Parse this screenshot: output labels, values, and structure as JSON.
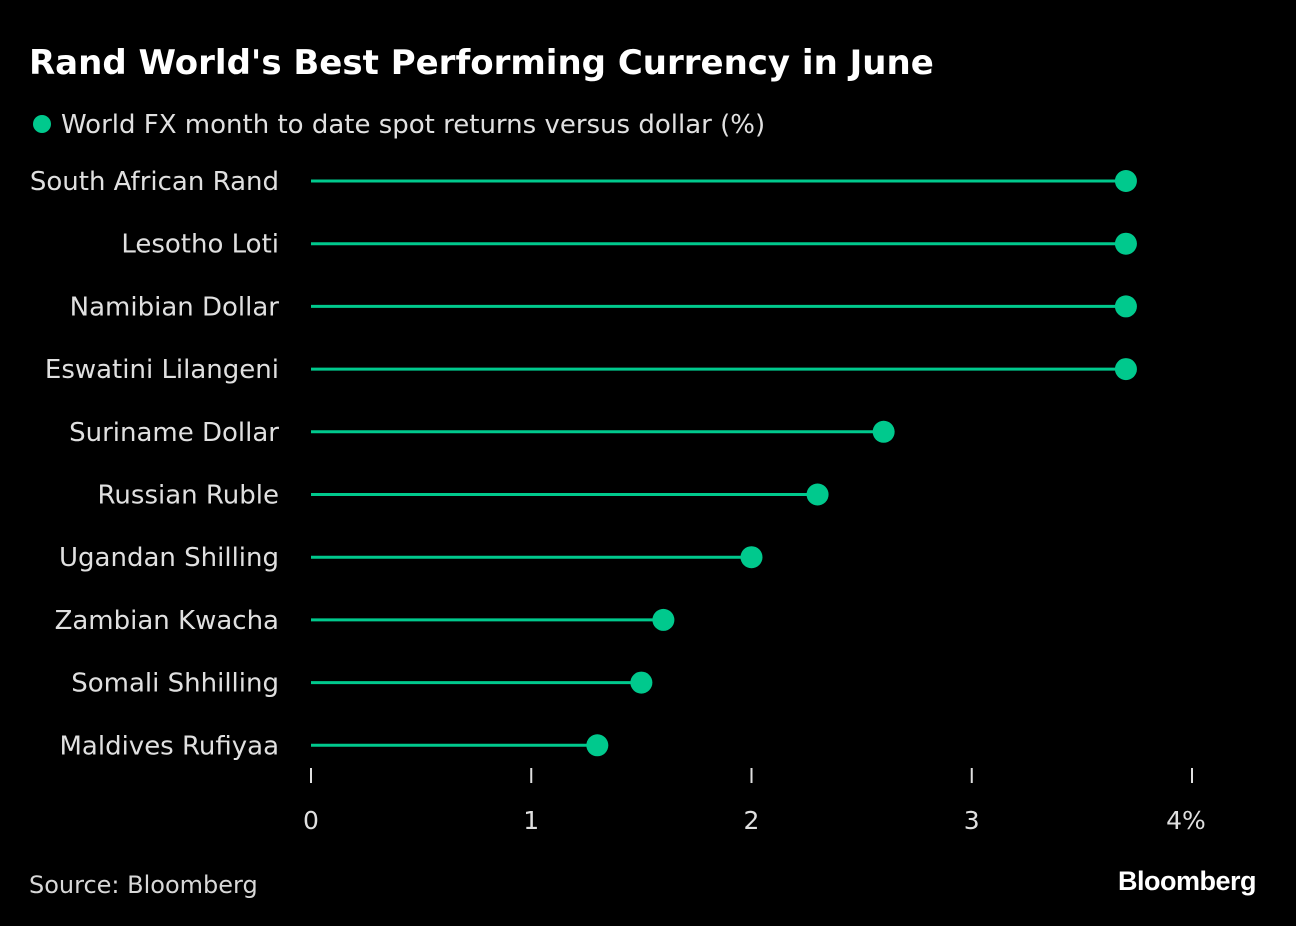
{
  "chart_data": {
    "type": "lollipop",
    "title": "Rand World's Best Performing Currency in June",
    "legend": "World FX month to date spot returns versus dollar (%)",
    "categories": [
      "South African Rand",
      "Lesotho Loti",
      "Namibian Dollar",
      "Eswatini Lilangeni",
      "Suriname Dollar",
      "Russian Ruble",
      "Ugandan Shilling",
      "Zambian Kwacha",
      "Somali Shhilling",
      "Maldives Rufiyaa"
    ],
    "values": [
      3.7,
      3.7,
      3.7,
      3.7,
      2.6,
      2.3,
      2.0,
      1.6,
      1.5,
      1.3
    ],
    "xlim": [
      0,
      4
    ],
    "xticks": [
      0,
      1,
      2,
      3,
      4
    ],
    "xtick_labels": [
      "0",
      "1",
      "2",
      "3",
      "4%"
    ],
    "color": "#00c98d",
    "grid": false
  },
  "source": "Source: Bloomberg",
  "logo": "Bloomberg"
}
